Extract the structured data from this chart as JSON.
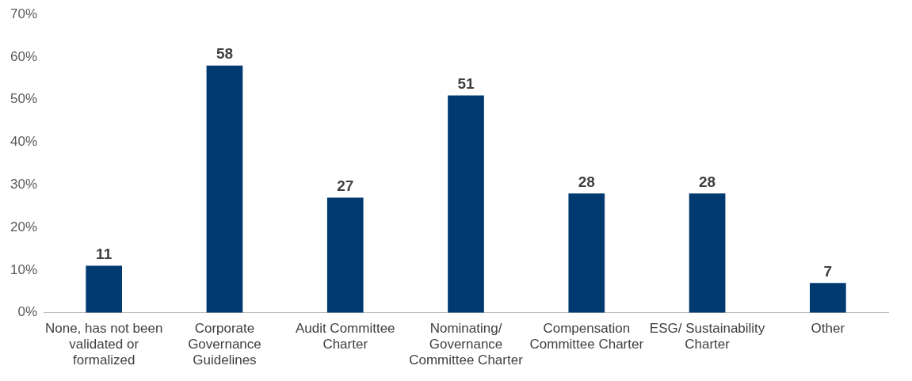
{
  "chart_data": {
    "type": "bar",
    "categories": [
      "None, has not been validated or formalized",
      "Corporate Governance Guidelines",
      "Audit Committee Charter",
      "Nominating/ Governance Committee Charter",
      "Compensation Committee Charter",
      "ESG/ Sustainability Charter",
      "Other"
    ],
    "values": [
      11,
      58,
      27,
      51,
      28,
      28,
      7
    ],
    "color": "#003a70",
    "ylim": [
      0,
      70
    ],
    "yticks": [
      {
        "value": 0,
        "label": "0%"
      },
      {
        "value": 10,
        "label": "10%"
      },
      {
        "value": 20,
        "label": "20%"
      },
      {
        "value": 30,
        "label": "30%"
      },
      {
        "value": 40,
        "label": "40%"
      },
      {
        "value": 50,
        "label": "50%"
      },
      {
        "value": 60,
        "label": "60%"
      },
      {
        "value": 70,
        "label": "70%"
      }
    ],
    "grid": false,
    "legend": false,
    "data_labels": true
  }
}
